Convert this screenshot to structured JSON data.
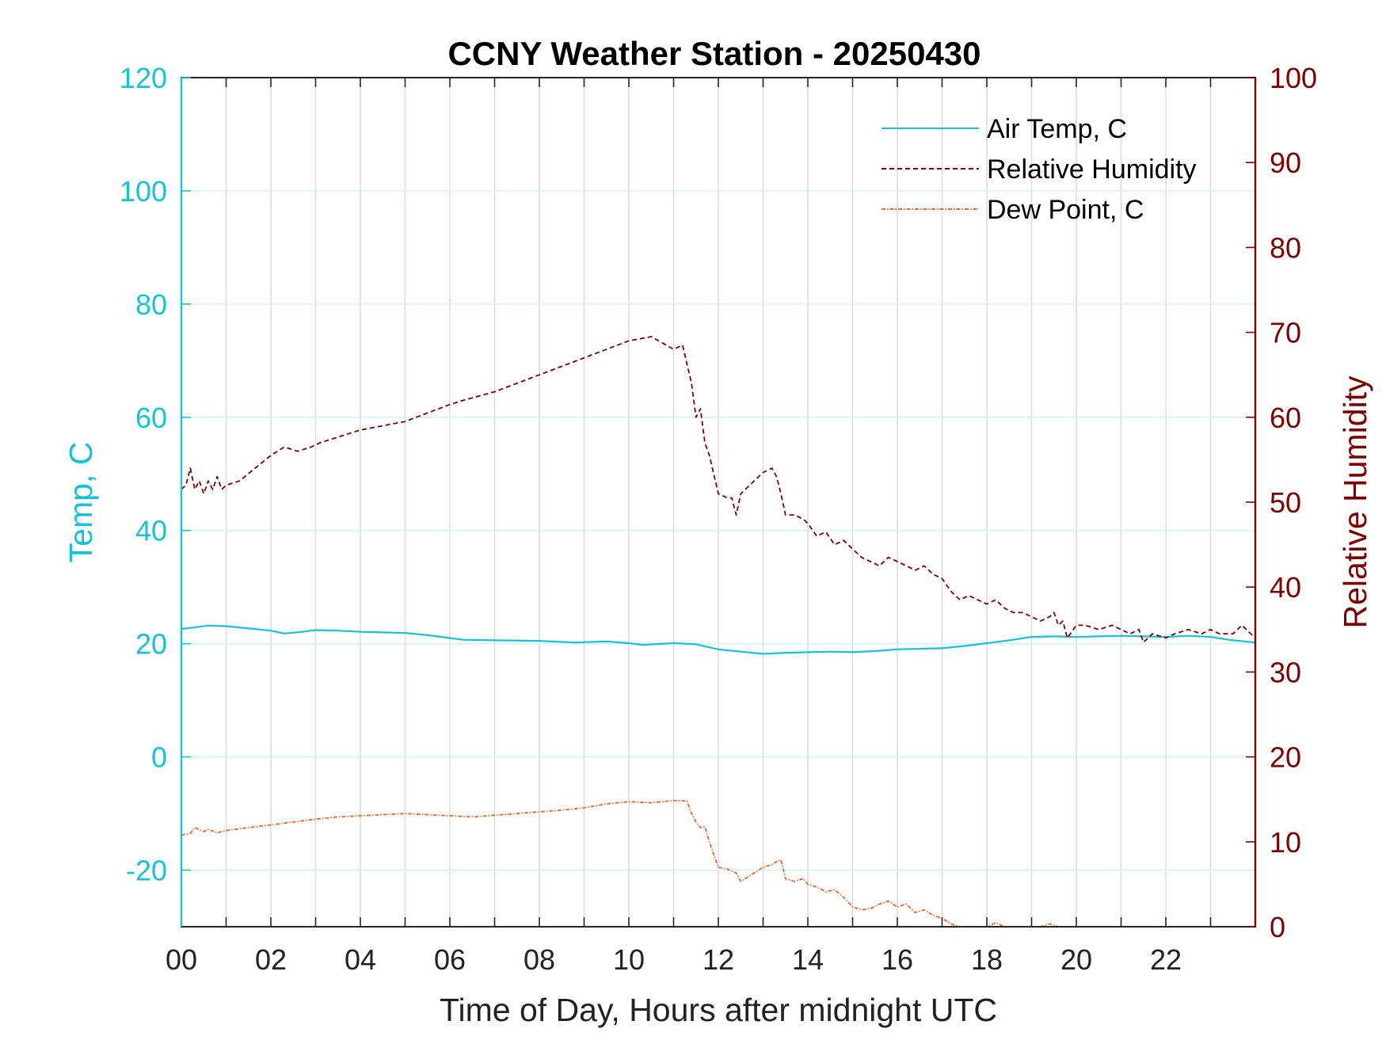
{
  "chart_data": {
    "type": "line",
    "title": "CCNY Weather Station - 20250430",
    "xlabel": "Time of Day, Hours after midnight UTC",
    "ylabel_left": "Temp, C",
    "ylabel_right": "Relative Humidity",
    "xlim": [
      0,
      24
    ],
    "ylim_left": [
      -30,
      120
    ],
    "ylim_right": [
      0,
      100
    ],
    "x_ticks": [
      0,
      2,
      4,
      6,
      8,
      10,
      12,
      14,
      16,
      18,
      20,
      22
    ],
    "x_tick_labels": [
      "00",
      "02",
      "04",
      "06",
      "08",
      "10",
      "12",
      "14",
      "16",
      "18",
      "20",
      "22"
    ],
    "y_left_ticks": [
      120,
      100,
      80,
      60,
      40,
      20,
      0,
      -20
    ],
    "y_right_ticks": [
      100,
      90,
      80,
      70,
      60,
      50,
      40,
      30,
      20,
      10,
      0
    ],
    "grid": true,
    "legend_position": "top-right",
    "colors": {
      "air_temp": "#17c2d6",
      "humidity": "#7a0000",
      "dew_point": "#e06a30"
    },
    "series": [
      {
        "name": "Air Temp, C",
        "axis": "left",
        "style": "solid",
        "x": [
          0,
          0.2,
          0.6,
          1,
          1.5,
          2,
          2.3,
          2.7,
          3,
          3.5,
          4,
          4.5,
          5,
          5.5,
          6,
          6.3,
          7,
          8,
          8.8,
          9.5,
          10,
          10.3,
          11,
          11.5,
          12,
          12.5,
          13,
          13.5,
          14,
          14.5,
          15,
          15.5,
          16,
          16.5,
          17,
          17.5,
          18,
          18.5,
          19,
          19.5,
          20,
          20.5,
          21,
          21.5,
          22,
          22.5,
          23,
          23.5,
          24
        ],
        "y": [
          22.6,
          22.8,
          23.2,
          23.1,
          22.7,
          22.3,
          21.8,
          22.1,
          22.4,
          22.3,
          22.1,
          22,
          21.9,
          21.5,
          21,
          20.7,
          20.6,
          20.5,
          20.2,
          20.4,
          20.1,
          19.8,
          20.1,
          19.9,
          19,
          18.6,
          18.2,
          18.4,
          18.5,
          18.6,
          18.5,
          18.7,
          19,
          19.1,
          19.2,
          19.6,
          20.1,
          20.6,
          21.2,
          21.3,
          21.2,
          21.3,
          21.4,
          21.3,
          21.2,
          21.4,
          21.2,
          20.6,
          20.2
        ]
      },
      {
        "name": "Relative Humidity",
        "axis": "right",
        "style": "dashed",
        "x": [
          0,
          0.1,
          0.2,
          0.3,
          0.4,
          0.5,
          0.6,
          0.7,
          0.8,
          0.9,
          1,
          1.3,
          1.6,
          2,
          2.3,
          2.6,
          2.9,
          3.1,
          3.4,
          3.7,
          4,
          4.5,
          5,
          5.5,
          6,
          6.3,
          7,
          7.5,
          8,
          8.5,
          9,
          9.5,
          10,
          10.5,
          11,
          11.2,
          11.4,
          11.5,
          11.6,
          11.7,
          11.8,
          12,
          12.2,
          12.3,
          12.4,
          12.5,
          12.7,
          13,
          13.2,
          13.3,
          13.4,
          13.5,
          13.7,
          13.9,
          14,
          14.2,
          14.4,
          14.6,
          14.8,
          15,
          15.2,
          15.4,
          15.6,
          15.8,
          16,
          16.2,
          16.4,
          16.6,
          16.8,
          17,
          17.2,
          17.4,
          17.6,
          17.8,
          18,
          18.2,
          18.4,
          18.6,
          18.8,
          19,
          19.2,
          19.4,
          19.5,
          19.6,
          19.7,
          19.8,
          20,
          20.2,
          20.5,
          20.8,
          21,
          21.2,
          21.4,
          21.5,
          21.7,
          22,
          22.2,
          22.5,
          22.8,
          23,
          23.2,
          23.5,
          23.7,
          23.9,
          24
        ],
        "y": [
          51.5,
          52,
          54,
          51.5,
          52.5,
          51,
          52.5,
          51.5,
          53,
          51.5,
          52,
          52.5,
          53.8,
          55.5,
          56.5,
          56,
          56.5,
          57,
          57.5,
          58,
          58.5,
          59,
          59.5,
          60.5,
          61.5,
          62,
          63,
          64,
          65,
          66,
          67,
          68,
          69,
          69.5,
          68,
          68.5,
          64,
          60,
          61,
          57,
          55.5,
          51,
          50.5,
          50.5,
          48.5,
          51,
          52,
          53.5,
          54,
          53,
          51,
          48.5,
          48.5,
          48,
          47.5,
          46,
          46.5,
          45,
          45.5,
          44.5,
          43.5,
          43,
          42.5,
          43.5,
          43,
          42.5,
          42,
          42.5,
          41.5,
          41,
          39.5,
          38.5,
          39,
          38.5,
          38,
          38.5,
          37.5,
          37,
          37,
          36.5,
          36,
          36.5,
          37,
          35.5,
          36,
          34,
          35.5,
          35.5,
          35,
          35.5,
          35,
          34.5,
          35,
          33.5,
          34.5,
          34,
          34.5,
          35,
          34.5,
          35,
          34.5,
          34.5,
          35.5,
          34.5,
          34
        ]
      },
      {
        "name": "Dew Point, C",
        "axis": "left",
        "style": "dash-dot",
        "x": [
          0,
          0.2,
          0.3,
          0.5,
          0.6,
          0.8,
          1,
          1.5,
          2,
          2.5,
          3,
          3.5,
          4,
          4.5,
          5,
          5.5,
          6,
          6.5,
          7,
          7.5,
          8,
          8.5,
          9,
          9.5,
          10,
          10.5,
          11,
          11.3,
          11.4,
          11.5,
          11.6,
          11.7,
          11.8,
          12,
          12.2,
          12.4,
          12.5,
          12.7,
          13,
          13.2,
          13.3,
          13.4,
          13.5,
          13.7,
          13.9,
          14,
          14.2,
          14.4,
          14.6,
          14.8,
          15,
          15.2,
          15.4,
          15.6,
          15.8,
          16,
          16.2,
          16.4,
          16.6,
          16.8,
          17,
          17.2,
          17.4,
          17.6,
          17.8,
          18,
          18.2,
          18.4,
          18.6,
          18.8,
          19,
          19.2,
          19.4,
          19.6,
          19.8,
          20,
          20.3,
          20.6,
          20.9,
          21.2
        ],
        "y": [
          -13.8,
          -13.5,
          -12.5,
          -13.2,
          -12.8,
          -13.4,
          -13,
          -12.5,
          -12,
          -11.5,
          -11,
          -10.6,
          -10.4,
          -10.2,
          -10,
          -10.2,
          -10.4,
          -10.6,
          -10.3,
          -10,
          -9.7,
          -9.4,
          -9,
          -8.3,
          -7.9,
          -8.1,
          -7.7,
          -7.8,
          -10,
          -11.5,
          -12.5,
          -12.3,
          -15,
          -19.5,
          -19.8,
          -20.5,
          -22,
          -21,
          -19.5,
          -19,
          -18.5,
          -18.2,
          -21.5,
          -22,
          -21.5,
          -22.5,
          -23,
          -23.8,
          -23.5,
          -24.8,
          -26.5,
          -27,
          -26.8,
          -26,
          -25.5,
          -26.5,
          -26,
          -27.5,
          -27,
          -28,
          -28.5,
          -29.5,
          -30.5,
          -30.8,
          -30.2,
          -30.8,
          -29.3,
          -31,
          -30.2,
          -31.5,
          -30.5,
          -30.8,
          -29.5,
          -30.5,
          -31,
          -30.4,
          -30.6,
          -31,
          -30.5,
          -30.4
        ]
      }
    ],
    "legend": [
      {
        "label": "Air Temp, C",
        "series": 0
      },
      {
        "label": "Relative Humidity",
        "series": 1
      },
      {
        "label": "Dew Point, C",
        "series": 2
      }
    ]
  }
}
